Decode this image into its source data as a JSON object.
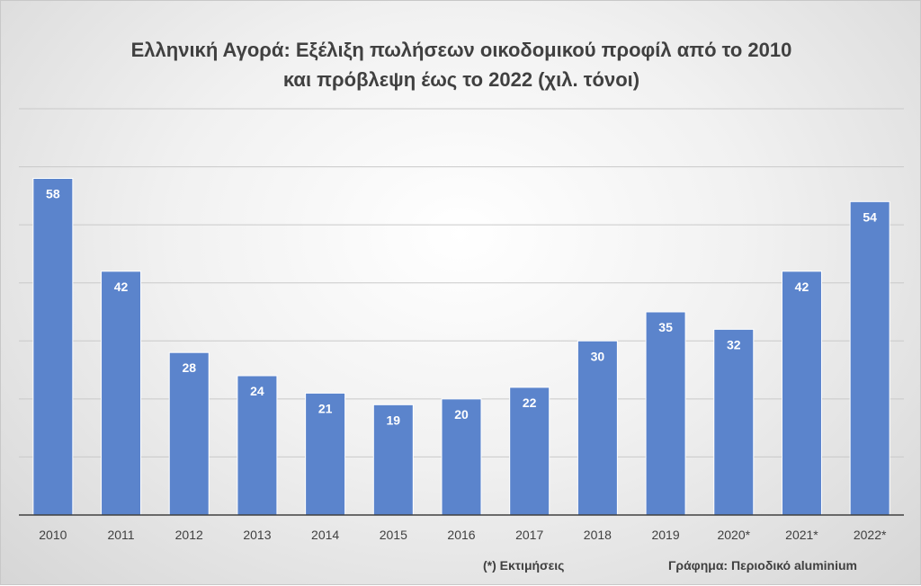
{
  "chart_data": {
    "type": "bar",
    "title_line1": "Ελληνική Αγορά: Εξέλιξη πωλήσεων οικοδομικού προφίλ από το 2010",
    "title_line2": "και πρόβλεψη έως το 2022 (χιλ. τόνοι)",
    "categories": [
      "2010",
      "2011",
      "2012",
      "2013",
      "2014",
      "2015",
      "2016",
      "2017",
      "2018",
      "2019",
      "2020*",
      "2021*",
      "2022*"
    ],
    "values": [
      58,
      42,
      28,
      24,
      21,
      19,
      20,
      22,
      30,
      35,
      32,
      42,
      54
    ],
    "ylim": [
      0,
      70
    ],
    "grid": true,
    "bar_color": "#5b84cc",
    "label_color": "#ffffff"
  },
  "footnotes": {
    "estimates": "(*) Εκτιμήσεις",
    "source": "Γράφημα: Περιοδικό aluminium"
  }
}
